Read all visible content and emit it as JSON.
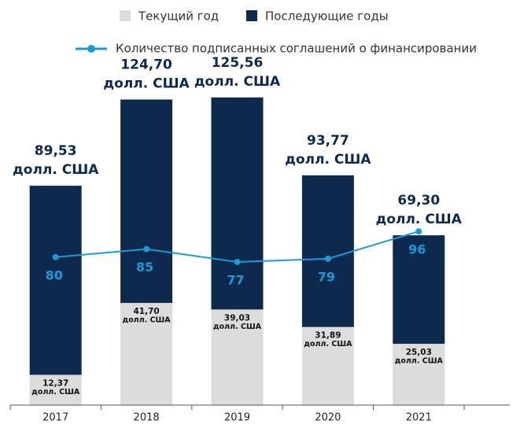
{
  "chart_data": {
    "type": "bar",
    "categories": [
      "2017",
      "2018",
      "2019",
      "2020",
      "2021"
    ],
    "series": [
      {
        "name": "Текущий год",
        "color": "#dcdcdc",
        "values": [
          12.37,
          41.7,
          39.03,
          31.89,
          25.03
        ],
        "value_labels": [
          "12,37",
          "41,70",
          "39,03",
          "31,89",
          "25,03"
        ]
      },
      {
        "name": "Последующие годы",
        "color": "#0d2a4e",
        "values": [
          77.16,
          83.0,
          86.53,
          61.88,
          44.27
        ]
      },
      {
        "name": "Количество подписанных соглашений о финансировании",
        "type": "line",
        "axis": "y2",
        "color": "#1a9bd7",
        "values": [
          80,
          85,
          77,
          79,
          96
        ]
      }
    ],
    "totals": [
      89.53,
      124.7,
      125.56,
      93.77,
      69.3
    ],
    "total_labels": [
      "89,53",
      "124,70",
      "125,56",
      "93,77",
      "69,30"
    ],
    "unit": "долл. США",
    "stacked": true,
    "ylim": [
      0,
      130
    ],
    "y2lim": [
      -12,
      186
    ]
  }
}
